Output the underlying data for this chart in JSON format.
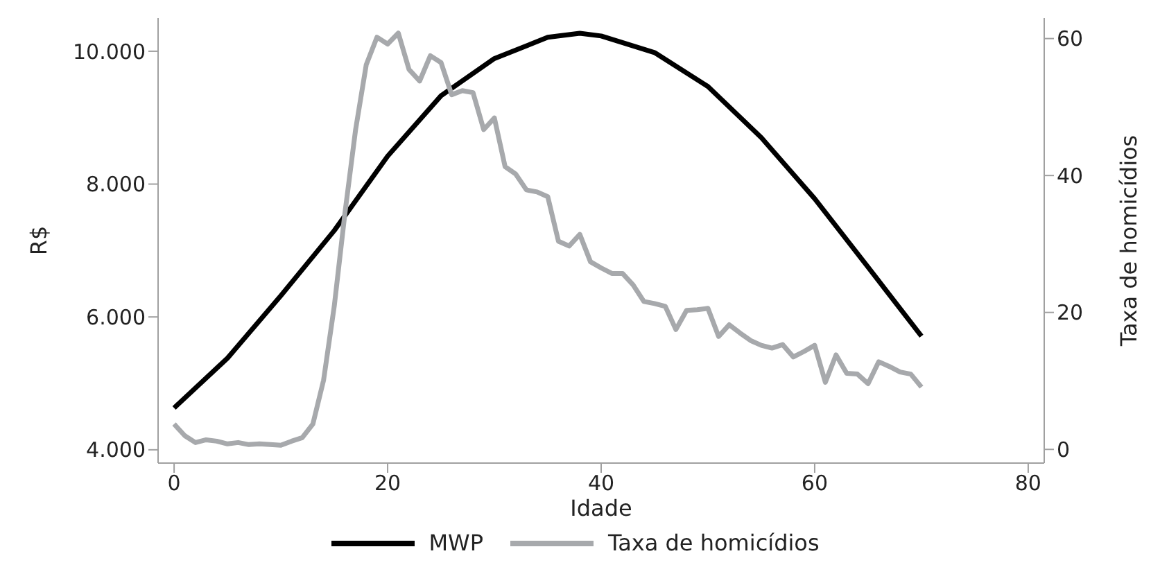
{
  "chart_data": {
    "type": "line",
    "xlabel": "Idade",
    "ylabel": "R$",
    "y2label": "Taxa de homicídios",
    "xlim": [
      -1.5,
      81.5
    ],
    "xticks": [
      0,
      20,
      40,
      60,
      80
    ],
    "ylim": [
      3800,
      10500
    ],
    "yticks": [
      {
        "value": 4000,
        "label": "4.000"
      },
      {
        "value": 6000,
        "label": "6.000"
      },
      {
        "value": 8000,
        "label": "8.000"
      },
      {
        "value": 10000,
        "label": "10.000"
      }
    ],
    "y2lim": [
      -2,
      63
    ],
    "y2ticks": [
      0,
      20,
      40,
      60
    ],
    "grid": false,
    "legend": "bottom",
    "marker": "none",
    "line_style": "solid",
    "series": [
      {
        "name": "MWP",
        "color": "#000000",
        "x": [
          0,
          5,
          10,
          15,
          20,
          25,
          30,
          35,
          38,
          40,
          45,
          50,
          55,
          60,
          65,
          70
        ],
        "values": [
          4630,
          5380,
          6320,
          7300,
          8420,
          9330,
          9890,
          10210,
          10270,
          10230,
          9980,
          9470,
          8700,
          7780,
          6750,
          5710
        ]
      },
      {
        "name": "Taxa de homicídios",
        "color": "#a7a9ac",
        "axis": "y2",
        "x": [
          0,
          1,
          2,
          3,
          4,
          5,
          6,
          7,
          8,
          9,
          10,
          11,
          12,
          13,
          14,
          15,
          16,
          17,
          18,
          19,
          20,
          21,
          22,
          23,
          24,
          25,
          26,
          27,
          28,
          29,
          30,
          31,
          32,
          33,
          34,
          35,
          36,
          37,
          38,
          39,
          40,
          41,
          42,
          43,
          44,
          45,
          46,
          47,
          48,
          49,
          50,
          51,
          52,
          53,
          54,
          55,
          56,
          57,
          58,
          59,
          60,
          61,
          62,
          63,
          64,
          65,
          66,
          67,
          68,
          69,
          70
        ],
        "values": [
          3.7,
          2.0,
          1.0,
          1.4,
          1.2,
          0.8,
          1.0,
          0.7,
          0.8,
          0.7,
          0.6,
          1.2,
          1.7,
          3.7,
          10.1,
          20.9,
          34.5,
          46.7,
          56.2,
          60.2,
          59.2,
          60.8,
          55.5,
          53.8,
          57.5,
          56.5,
          51.8,
          52.4,
          52.1,
          46.7,
          48.4,
          41.3,
          40.2,
          37.9,
          37.6,
          36.9,
          30.4,
          29.7,
          31.4,
          27.4,
          26.5,
          25.7,
          25.7,
          24.0,
          21.6,
          21.3,
          20.9,
          17.5,
          20.3,
          20.4,
          20.6,
          16.5,
          18.2,
          17.0,
          15.9,
          15.2,
          14.8,
          15.3,
          13.5,
          14.3,
          15.2,
          9.8,
          13.8,
          11.1,
          11.0,
          9.6,
          12.8,
          12.1,
          11.3,
          11.0,
          9.1
        ]
      }
    ]
  }
}
